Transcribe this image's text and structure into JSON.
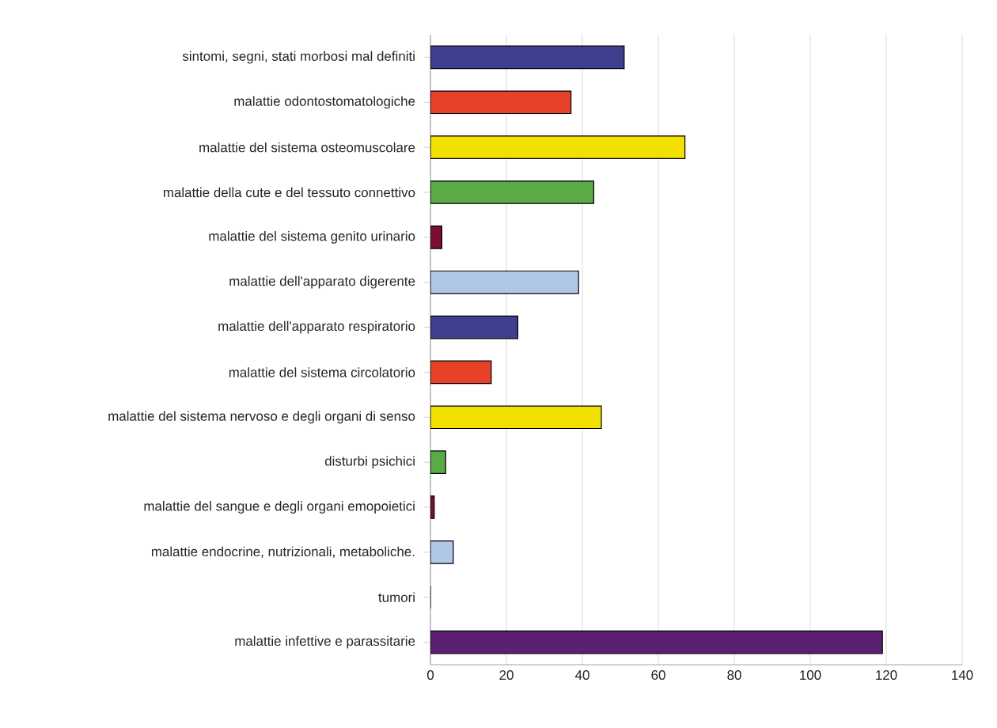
{
  "chart_data": {
    "type": "bar",
    "orientation": "horizontal",
    "categories": [
      "sintomi, segni, stati morbosi mal definiti",
      "malattie odontostomatologiche",
      "malattie del sistema osteomuscolare",
      "malattie della cute e del tessuto connettivo",
      "malattie del sistema genito urinario",
      "malattie dell'apparato digerente",
      "malattie dell'apparato respiratorio",
      "malattie del sistema circolatorio",
      "malattie del sistema nervoso e degli organi di senso",
      "disturbi psichici",
      "malattie del sangue e degli organi emopoietici",
      "malattie endocrine, nutrizionali, metaboliche.",
      "tumori",
      "malattie infettive e parassitarie"
    ],
    "values": [
      51,
      37,
      67,
      43,
      3,
      39,
      23,
      16,
      45,
      4,
      1,
      6,
      0,
      119
    ],
    "colors": [
      "#3f3f8f",
      "#e8412a",
      "#f2e000",
      "#5aaa46",
      "#7a1030",
      "#b0c8e8",
      "#3f3f8f",
      "#e8412a",
      "#f2e000",
      "#5aaa46",
      "#7a1030",
      "#b0c8e8",
      "#3f3f8f",
      "#5c2070"
    ],
    "xlim": [
      0,
      140
    ],
    "xticks": [
      0,
      20,
      40,
      60,
      80,
      100,
      120,
      140
    ],
    "grid": "x"
  }
}
